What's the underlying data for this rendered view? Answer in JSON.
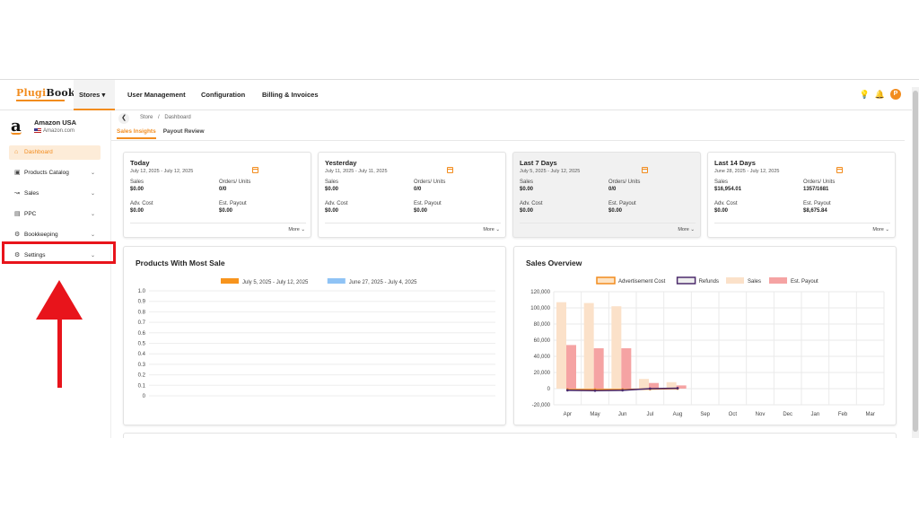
{
  "app": {
    "logo_part1": "Plugi",
    "logo_part2": "Books."
  },
  "topnav": {
    "items": [
      "Stores",
      "User Management",
      "Configuration",
      "Billing & Invoices"
    ],
    "avatar_initial": "P"
  },
  "sidebar": {
    "store_name": "Amazon USA",
    "store_domain": "Amazon.com",
    "items": [
      {
        "label": "Dashboard",
        "icon": "home-icon",
        "active": true
      },
      {
        "label": "Products Catalog",
        "icon": "box-icon"
      },
      {
        "label": "Sales",
        "icon": "chart-line-icon"
      },
      {
        "label": "PPC",
        "icon": "ppc-icon"
      },
      {
        "label": "Bookkeeping",
        "icon": "gear-icon"
      },
      {
        "label": "Settings",
        "icon": "gear-icon"
      }
    ]
  },
  "breadcrumb": {
    "store": "Store",
    "separator": "/",
    "page": "Dashboard"
  },
  "subtabs": [
    "Sales Insights",
    "Payout Review"
  ],
  "cards": [
    {
      "title": "Today",
      "range": "July 12, 2025 - July 12, 2025",
      "sales_label": "Sales",
      "sales": "$0.00",
      "orders_label": "Orders/ Units",
      "orders": "0/0",
      "adv_label": "Adv. Cost",
      "adv": "$0.00",
      "payout_label": "Est. Payout",
      "payout": "$0.00",
      "more": "More"
    },
    {
      "title": "Yesterday",
      "range": "July 11, 2025 - July 11, 2025",
      "sales_label": "Sales",
      "sales": "$0.00",
      "orders_label": "Orders/ Units",
      "orders": "0/0",
      "adv_label": "Adv. Cost",
      "adv": "$0.00",
      "payout_label": "Est. Payout",
      "payout": "$0.00",
      "more": "More"
    },
    {
      "title": "Last 7 Days",
      "range": "July 5, 2025 - July 12, 2025",
      "sales_label": "Sales",
      "sales": "$0.00",
      "orders_label": "Orders/ Units",
      "orders": "0/0",
      "adv_label": "Adv. Cost",
      "adv": "$0.00",
      "payout_label": "Est. Payout",
      "payout": "$0.00",
      "more": "More"
    },
    {
      "title": "Last 14 Days",
      "range": "June 28, 2025 - July 12, 2025",
      "sales_label": "Sales",
      "sales": "$16,954.01",
      "orders_label": "Orders/ Units",
      "orders": "1357/1681",
      "adv_label": "Adv. Cost",
      "adv": "$0.00",
      "payout_label": "Est. Payout",
      "payout": "$8,675.84",
      "more": "More"
    }
  ],
  "colors": {
    "accent": "#f28c1e",
    "series_current": "#f7941d",
    "series_previous": "#8fc3f5",
    "adv_cost": "#f28c1e",
    "refunds": "#4b2a6b",
    "sales": "#fbe1c9",
    "payout": "#f5a3a3",
    "highlight": "#e8141b"
  },
  "chart_data": [
    {
      "type": "bar",
      "title": "Products With Most Sale",
      "series": [
        {
          "name": "July 5, 2025 - July 12, 2025",
          "values": []
        },
        {
          "name": "June 27, 2025 - July 4, 2025",
          "values": []
        }
      ],
      "y_ticks": [
        "1.0",
        "0.9",
        "0.8",
        "0.7",
        "0.6",
        "0.5",
        "0.4",
        "0.3",
        "0.2",
        "0.1",
        "0"
      ],
      "ylim": [
        0,
        1
      ],
      "legend": "top"
    },
    {
      "type": "bar",
      "title": "Sales Overview",
      "categories": [
        "Apr",
        "May",
        "Jun",
        "Jul",
        "Aug",
        "Sep",
        "Oct",
        "Nov",
        "Dec",
        "Jan",
        "Feb",
        "Mar"
      ],
      "series": [
        {
          "name": "Advertisement Cost",
          "kind": "line",
          "values": [
            -1000,
            -1000,
            -1000,
            -500,
            0,
            null,
            null,
            null,
            null,
            null,
            null,
            null
          ]
        },
        {
          "name": "Refunds",
          "kind": "line",
          "values": [
            -2000,
            -2500,
            -2000,
            0,
            500,
            null,
            null,
            null,
            null,
            null,
            null,
            null
          ]
        },
        {
          "name": "Sales",
          "kind": "bar",
          "values": [
            107000,
            106000,
            102000,
            12000,
            8000,
            0,
            0,
            0,
            0,
            0,
            0,
            0
          ]
        },
        {
          "name": "Est. Payout",
          "kind": "bar",
          "values": [
            54000,
            50000,
            50000,
            7000,
            4000,
            0,
            0,
            0,
            0,
            0,
            0,
            0
          ]
        }
      ],
      "y_ticks": [
        "120,000",
        "100,000",
        "80,000",
        "60,000",
        "40,000",
        "20,000",
        "0",
        "-20,000"
      ],
      "ylim": [
        -20000,
        120000
      ],
      "legend": "top"
    }
  ]
}
